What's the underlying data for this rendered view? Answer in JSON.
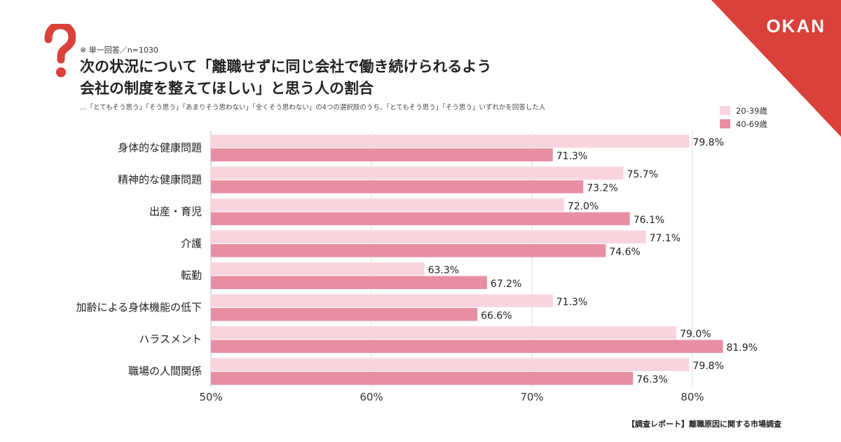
{
  "brand": {
    "logo": "OKAN"
  },
  "header": {
    "note": "※ 単一回答／n=1030",
    "title_line1": "次の状況について「離職せずに同じ会社で働き続けられるよう",
    "title_line2": "会社の制度を整えてほしい」と思う人の割合",
    "subtitle": "…「とてもそう思う」「そう思う」「あまりそう思わない」「全くそう思わない」の4つの選択肢のうち、「とてもそう思う」「そう思う」いずれかを回答した人"
  },
  "footer": {
    "source": "【調査レポート】離職原因に関する市場調査"
  },
  "chart_data": {
    "type": "bar",
    "orientation": "horizontal",
    "categories": [
      "身体的な健康問題",
      "精神的な健康問題",
      "出産・育児",
      "介護",
      "転勤",
      "加齢による身体機能の低下",
      "ハラスメント",
      "職場の人間関係"
    ],
    "series": [
      {
        "name": "20-39歳",
        "color": "#fad4dc",
        "values": [
          79.8,
          75.7,
          72.0,
          77.1,
          63.3,
          71.3,
          79.0,
          79.8
        ]
      },
      {
        "name": "40-69歳",
        "color": "#e88ea2",
        "values": [
          71.3,
          73.2,
          76.1,
          74.6,
          67.2,
          66.6,
          81.9,
          76.3
        ]
      }
    ],
    "value_labels": [
      [
        "79.8%",
        "75.7%",
        "72.0%",
        "77.1%",
        "63.3%",
        "71.3%",
        "79.0%",
        "79.8%"
      ],
      [
        "71.3%",
        "73.2%",
        "76.1%",
        "74.6%",
        "67.2%",
        "66.6%",
        "81.9%",
        "76.3%"
      ]
    ],
    "xlim": [
      50,
      82
    ],
    "xticks": [
      50,
      60,
      70,
      80
    ],
    "xtick_labels": [
      "50%",
      "60%",
      "70%",
      "80%"
    ],
    "grid": true,
    "legend_position": "top-right"
  }
}
